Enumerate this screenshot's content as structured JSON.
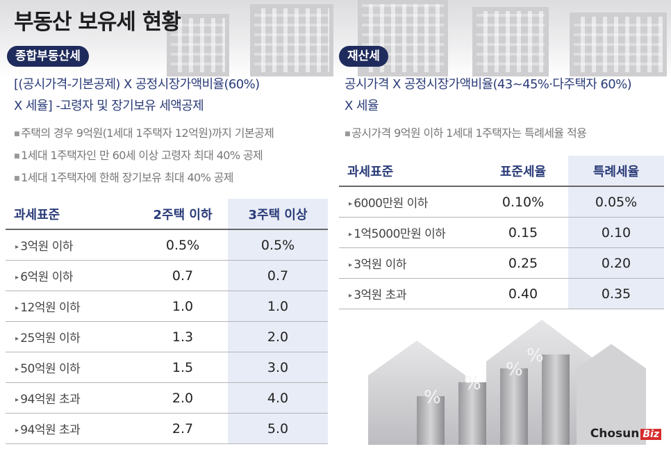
{
  "title": "부동산 보유세 현황",
  "left": {
    "badge": "종합부동산세",
    "formula_line1": "[(공시가격-기본공제) X 공정시장가액비율(60%)",
    "formula_line2": "X 세율] -고령자 및 장기보유 세액공제",
    "notes": [
      "주택의 경우 9억원(1세대 1주택자 12억원)까지 기본공제",
      "1세대 1주택자인 만 60세 이상 고령자 최대 40% 공제",
      "1세대 1주택자에 한해 장기보유 최대 40% 공제"
    ],
    "table": {
      "headers": [
        "과세표준",
        "2주택 이하",
        "3주택 이상"
      ],
      "rows": [
        [
          "3억원 이하",
          "0.5%",
          "0.5%"
        ],
        [
          "6억원 이하",
          "0.7",
          "0.7"
        ],
        [
          "12억원 이하",
          "1.0",
          "1.0"
        ],
        [
          "25억원 이하",
          "1.3",
          "2.0"
        ],
        [
          "50억원 이하",
          "1.5",
          "3.0"
        ],
        [
          "94억원 초과",
          "2.0",
          "4.0"
        ],
        [
          "94억원 초과",
          "2.7",
          "5.0"
        ]
      ]
    }
  },
  "right": {
    "badge": "재산세",
    "formula_line1": "공시가격 X 공정시장가액비율(43~45%·다주택자 60%)",
    "formula_line2": "X 세율",
    "notes": [
      "공시가격 9억원 이하 1세대 1주택자는 특례세율 적용"
    ],
    "table": {
      "headers": [
        "과세표준",
        "표준세율",
        "특례세율"
      ],
      "rows": [
        [
          "6000만원 이하",
          "0.10%",
          "0.05%"
        ],
        [
          "1억5000만원 이하",
          "0.15",
          "0.10"
        ],
        [
          "3억원 이하",
          "0.25",
          "0.20"
        ],
        [
          "3억원 초과",
          "0.40",
          "0.35"
        ]
      ]
    }
  },
  "logo": {
    "main": "Chosun",
    "accent": "Biz"
  },
  "colors": {
    "navy": "#1f2b5c",
    "formula": "#2a3b78",
    "highlight": "#e8ecf6",
    "logo_red": "#d62c2c"
  }
}
